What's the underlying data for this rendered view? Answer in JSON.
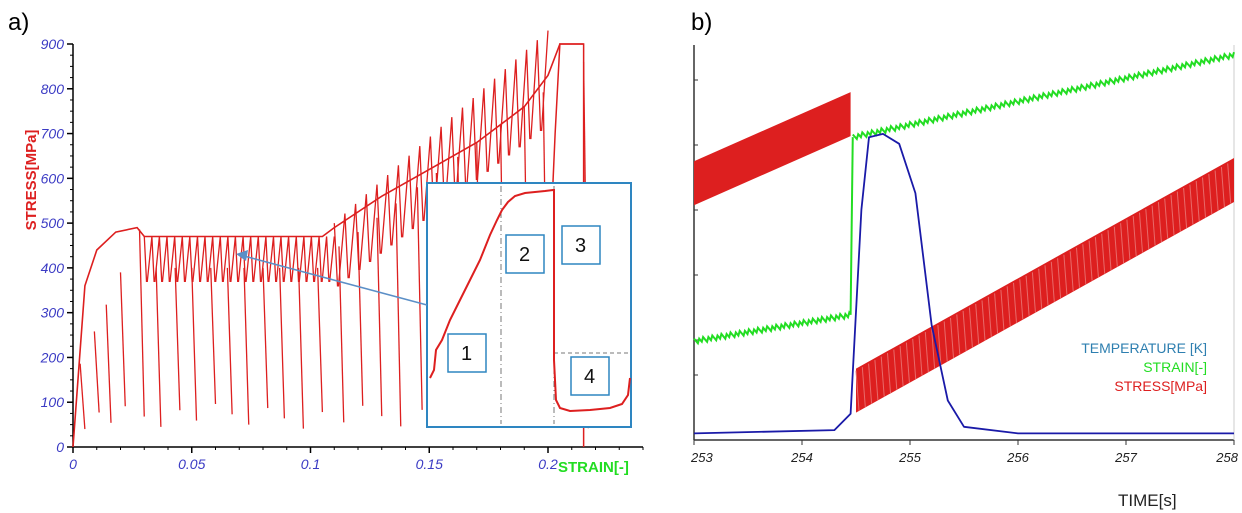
{
  "panel_labels": {
    "a": "a)",
    "b": "b)"
  },
  "colors": {
    "stress": "#dd1f1f",
    "strain": "#22dd22",
    "temperature": "#1a1aa8",
    "inset_border": "#2e86c1",
    "tick_a": "#3b3bc4",
    "legend_temperature": "#2e7fb0"
  },
  "chart_data": [
    {
      "type": "line",
      "xlabel": "STRAIN[-]",
      "ylabel": "STRESS[MPa]",
      "xlim": [
        0,
        0.24
      ],
      "ylim": [
        0,
        900
      ],
      "x_ticks": [
        "0",
        "0.05",
        "0.1",
        "0.15",
        "0.2"
      ],
      "y_ticks": [
        "0",
        "100",
        "200",
        "300",
        "400",
        "500",
        "600",
        "700",
        "800",
        "900"
      ],
      "series": [
        {
          "name": "STRESS[MPa]",
          "x": [
            0.0,
            0.005,
            0.01,
            0.018,
            0.027,
            0.03,
            0.06,
            0.09,
            0.105,
            0.11,
            0.13,
            0.15,
            0.17,
            0.19,
            0.2,
            0.205,
            0.215
          ],
          "y": [
            0,
            360,
            440,
            480,
            490,
            470,
            470,
            470,
            470,
            490,
            560,
            620,
            680,
            760,
            830,
            900,
            900
          ]
        }
      ],
      "cycle_bands": [
        {
          "x_start": 0.03,
          "x_end": 0.11,
          "high": 470,
          "low": 370,
          "cycles": 25
        },
        {
          "x_start": 0.11,
          "x_end": 0.2,
          "high": 870,
          "low": 440,
          "cycles": 20
        }
      ],
      "unload_drops_x": [
        0.003,
        0.009,
        0.014,
        0.02,
        0.028,
        0.035,
        0.043,
        0.05,
        0.058,
        0.065,
        0.072,
        0.08,
        0.087,
        0.095,
        0.103,
        0.112,
        0.12,
        0.128,
        0.136,
        0.145,
        0.153,
        0.162,
        0.17,
        0.18,
        0.19,
        0.198,
        0.215
      ],
      "inset": {
        "labels": [
          "1",
          "2",
          "3",
          "4"
        ]
      }
    },
    {
      "type": "line",
      "xlabel": "TIME[s]",
      "x_ticks": [
        "253",
        "254",
        "255",
        "256",
        "257",
        "258"
      ],
      "xlim": [
        253,
        258
      ],
      "series": [
        {
          "name": "TEMPERATURE [K]",
          "x": [
            253,
            254.3,
            254.45,
            254.55,
            254.62,
            254.75,
            254.9,
            255.05,
            255.2,
            255.35,
            255.5,
            256,
            258
          ],
          "y": [
            0.02,
            0.03,
            0.08,
            0.7,
            0.92,
            0.93,
            0.9,
            0.75,
            0.35,
            0.12,
            0.04,
            0.02,
            0.02
          ]
        },
        {
          "name": "STRAIN[-]",
          "x": [
            253,
            254.45,
            254.47,
            258
          ],
          "y": [
            0.3,
            0.38,
            0.92,
            1.17
          ]
        },
        {
          "name": "STRESS[MPa]",
          "x": [
            253,
            254.45,
            254.5,
            258
          ],
          "y": [
            0.78,
            0.99,
            0.15,
            0.79
          ]
        }
      ]
    }
  ]
}
